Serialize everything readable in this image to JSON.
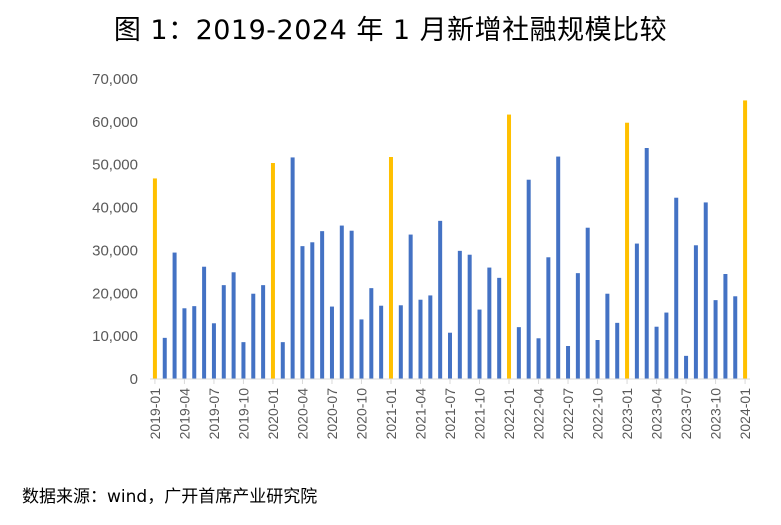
{
  "title": "图 1：2019-2024 年 1 月新增社融规模比较",
  "source": "数据来源：wind，广开首席产业研究院",
  "chart_data": {
    "type": "bar",
    "categories": [
      "2019-01",
      "2019-02",
      "2019-03",
      "2019-04",
      "2019-05",
      "2019-06",
      "2019-07",
      "2019-08",
      "2019-09",
      "2019-10",
      "2019-11",
      "2019-12",
      "2020-01",
      "2020-02",
      "2020-03",
      "2020-04",
      "2020-05",
      "2020-06",
      "2020-07",
      "2020-08",
      "2020-09",
      "2020-10",
      "2020-11",
      "2020-12",
      "2021-01",
      "2021-02",
      "2021-03",
      "2021-04",
      "2021-05",
      "2021-06",
      "2021-07",
      "2021-08",
      "2021-09",
      "2021-10",
      "2021-11",
      "2021-12",
      "2022-01",
      "2022-02",
      "2022-03",
      "2022-04",
      "2022-05",
      "2022-06",
      "2022-07",
      "2022-08",
      "2022-09",
      "2022-10",
      "2022-11",
      "2022-12",
      "2023-01",
      "2023-02",
      "2023-03",
      "2023-04",
      "2023-05",
      "2023-06",
      "2023-07",
      "2023-08",
      "2023-09",
      "2023-10",
      "2023-11",
      "2023-12",
      "2024-01"
    ],
    "values": [
      46800,
      9600,
      29500,
      16500,
      17000,
      26200,
      13000,
      21900,
      24900,
      8600,
      19900,
      21900,
      50400,
      8600,
      51700,
      31000,
      31900,
      34500,
      16900,
      35800,
      34600,
      13900,
      21200,
      17100,
      51800,
      17200,
      33700,
      18500,
      19500,
      36900,
      10800,
      29900,
      29000,
      16200,
      26000,
      23600,
      61700,
      12100,
      46500,
      9500,
      28400,
      51900,
      7700,
      24700,
      35300,
      9100,
      19900,
      13100,
      59800,
      31600,
      53900,
      12200,
      15500,
      42300,
      5400,
      31200,
      41200,
      18400,
      24500,
      19300,
      65000
    ],
    "ylim": [
      0,
      70000
    ],
    "yticks": [
      "0",
      "10,000",
      "20,000",
      "30,000",
      "40,000",
      "50,000",
      "60,000",
      "70,000"
    ],
    "xtick_labels": [
      "2019-01",
      "2019-04",
      "2019-07",
      "2019-10",
      "2020-01",
      "2020-04",
      "2020-07",
      "2020-10",
      "2021-01",
      "2021-04",
      "2021-07",
      "2021-10",
      "2022-01",
      "2022-04",
      "2022-07",
      "2022-10",
      "2023-01",
      "2023-04",
      "2023-07",
      "2023-10",
      "2024-01"
    ],
    "colors": {
      "default": "#4472C4",
      "january": "#FFC000",
      "axis": "#D9D9D9"
    },
    "grid": false,
    "legend": "none"
  }
}
